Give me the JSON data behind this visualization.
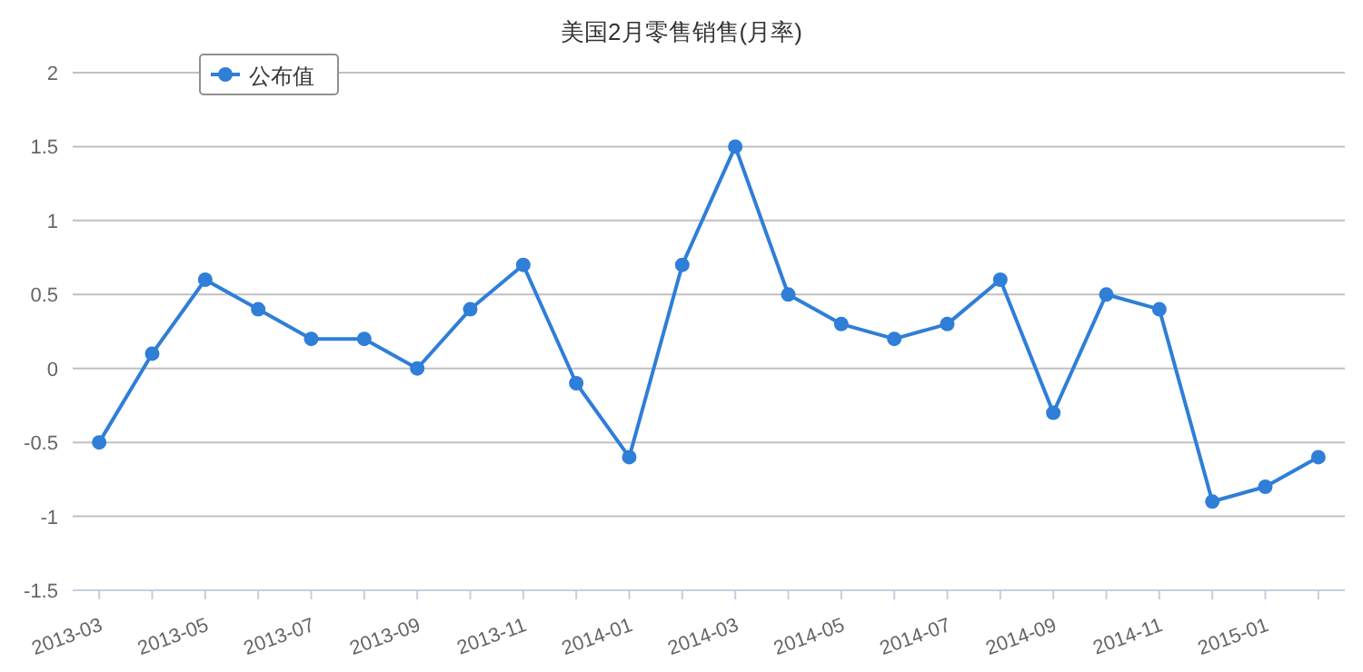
{
  "chart_data": {
    "type": "line",
    "title": "美国2月零售销售(月率)",
    "categories": [
      "2013-03",
      null,
      "2013-05",
      null,
      "2013-07",
      null,
      "2013-09",
      null,
      "2013-11",
      null,
      "2014-01",
      null,
      "2014-03",
      null,
      "2014-05",
      null,
      "2014-07",
      null,
      "2014-09",
      null,
      "2014-11",
      null,
      "2015-01",
      null
    ],
    "series": [
      {
        "name": "公布值",
        "color": "#2f7ed8",
        "values": [
          -0.5,
          0.1,
          0.6,
          0.4,
          0.2,
          0.2,
          0.0,
          0.4,
          0.7,
          -0.1,
          -0.6,
          0.7,
          1.5,
          0.5,
          0.3,
          0.2,
          0.3,
          0.6,
          -0.3,
          0.5,
          0.4,
          -0.9,
          -0.8,
          -0.6
        ]
      }
    ],
    "ylim": [
      -1.5,
      2
    ],
    "yticks": [
      -1.5,
      -1,
      -0.5,
      0,
      0.5,
      1,
      1.5,
      2
    ],
    "grid": "y",
    "legend": "top left",
    "marker": "circle",
    "line_style": "solid"
  }
}
